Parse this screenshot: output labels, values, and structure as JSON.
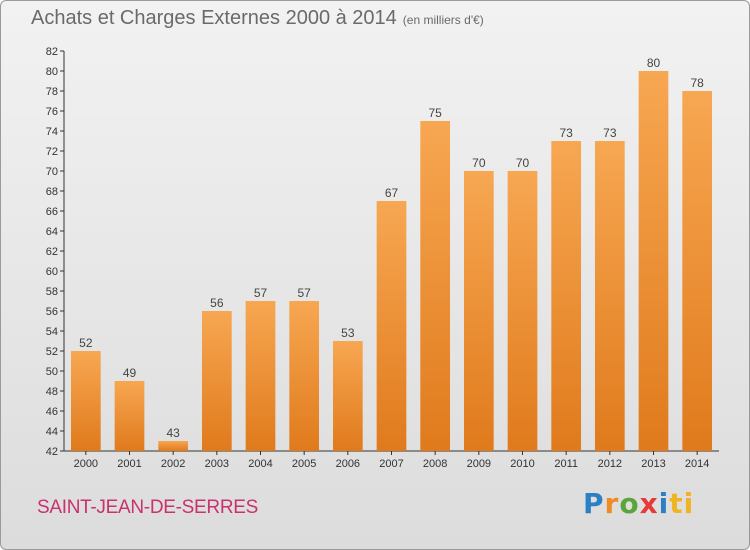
{
  "title": "Achats et Charges Externes 2000 à 2014",
  "subtitle": "(en milliers d'€)",
  "commune": "SAINT-JEAN-DE-SERRES",
  "logo": {
    "letters": [
      "P",
      "r",
      "o",
      "x",
      "i",
      "ti"
    ]
  },
  "colors": {
    "bar_top": "#f7a752",
    "bar_bottom": "#e07a1c",
    "commune": "#c8326e"
  },
  "chart_data": {
    "type": "bar",
    "title": "Achats et Charges Externes 2000 à 2014",
    "subtitle": "(en milliers d'€)",
    "xlabel": "",
    "ylabel": "",
    "categories": [
      "2000",
      "2001",
      "2002",
      "2003",
      "2004",
      "2005",
      "2006",
      "2007",
      "2008",
      "2009",
      "2010",
      "2011",
      "2012",
      "2013",
      "2014"
    ],
    "values": [
      52,
      49,
      43,
      56,
      57,
      57,
      53,
      67,
      75,
      70,
      70,
      73,
      73,
      80,
      78
    ],
    "ylim": [
      42,
      82
    ],
    "ytick_step": 2,
    "grid": false
  }
}
